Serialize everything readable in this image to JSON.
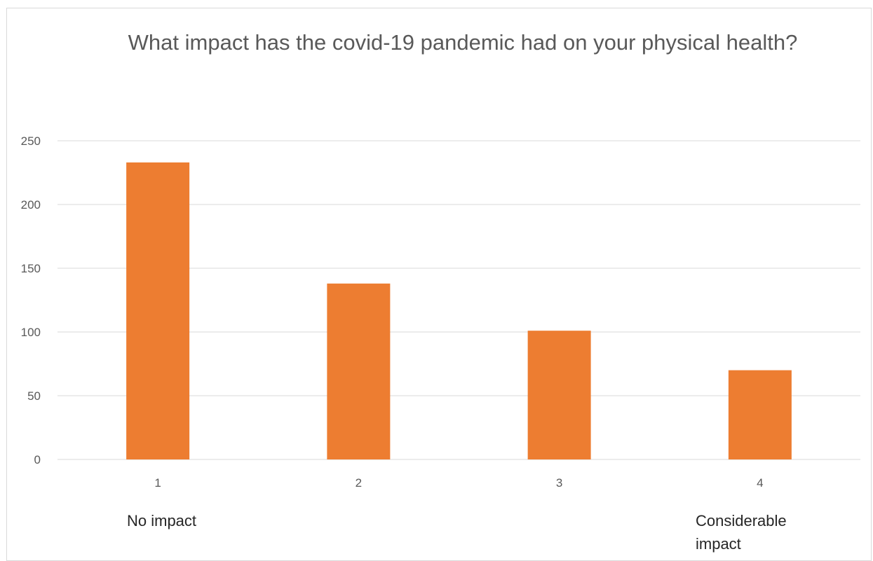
{
  "chart_data": {
    "type": "bar",
    "title": "What impact has the covid-19 pandemic had on your physical health?",
    "categories": [
      "1",
      "2",
      "3",
      "4"
    ],
    "values": [
      233,
      138,
      101,
      70
    ],
    "ylim": [
      0,
      250
    ],
    "yticks": [
      0,
      50,
      100,
      150,
      200,
      250
    ],
    "xlabel": "",
    "ylabel": "",
    "grid": true,
    "legend": "none",
    "bar_color": "#ED7D31",
    "annotations": {
      "low_end": "No impact",
      "high_end": "Considerable impact"
    }
  }
}
